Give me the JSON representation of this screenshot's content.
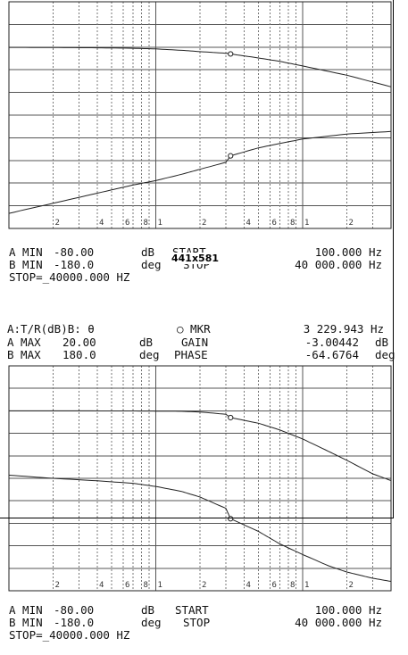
{
  "overlay_label": "441x581",
  "plots": [
    {
      "header": {
        "mode": "",
        "marker": "",
        "marker_freq": "",
        "a_max_label": "",
        "a_max_value": "",
        "a_max_unit": "",
        "gain_label": "",
        "gain_value": "",
        "gain_unit": "",
        "b_max_label": "",
        "b_max_value": "",
        "b_max_unit": "",
        "phase_label": "",
        "phase_value": "",
        "phase_unit": ""
      },
      "footer": {
        "a_min_label": "A MIN",
        "a_min_value": "-80.00",
        "a_min_unit": "dB",
        "start_label": "START",
        "start_value": "100.000 Hz",
        "b_min_label": "B MIN",
        "b_min_value": "-180.0",
        "b_min_unit": "deg",
        "stop_label": "STOP",
        "stop_value": "40 000.000 Hz",
        "stop_line": "STOP=_40000.000 HZ"
      },
      "x_tick_labels": [
        "2",
        "4",
        "6",
        "8",
        "1",
        "2",
        "4",
        "6",
        "8",
        "1",
        "2"
      ]
    },
    {
      "header": {
        "mode": "A:T/R(dB)B: θ",
        "marker": "○ MKR",
        "marker_freq": "3 229.943 Hz",
        "a_max_label": "A MAX",
        "a_max_value": "20.00",
        "a_max_unit": "dB",
        "gain_label": "GAIN",
        "gain_value": "-3.00442",
        "gain_unit": "dB",
        "b_max_label": "B MAX",
        "b_max_value": "180.0",
        "b_max_unit": "deg",
        "phase_label": "PHASE",
        "phase_value": "-64.6764",
        "phase_unit": "deg"
      },
      "footer": {
        "a_min_label": "A MIN",
        "a_min_value": "-80.00",
        "a_min_unit": "dB",
        "start_label": "START",
        "start_value": "100.000 Hz",
        "b_min_label": "B MIN",
        "b_min_value": "-180.0",
        "b_min_unit": "deg",
        "stop_label": "STOP",
        "stop_value": "40 000.000 Hz",
        "stop_line": "STOP=_40000.000 HZ"
      },
      "x_tick_labels": [
        "2",
        "4",
        "6",
        "8",
        "1",
        "2",
        "4",
        "6",
        "8",
        "1",
        "2"
      ]
    }
  ],
  "chart_data": [
    {
      "type": "line",
      "title": "",
      "xscale": "log",
      "xlim": [
        100,
        40000
      ],
      "ylim_a": [
        -80,
        20
      ],
      "ylim_b": [
        -180,
        180
      ],
      "grid": true,
      "series": [
        {
          "axis": "A",
          "unit": "dB",
          "x": [
            100,
            200,
            400,
            700,
            1000,
            1500,
            2000,
            3000,
            3230,
            5000,
            7000,
            10000,
            20000,
            40000
          ],
          "y": [
            -0.1,
            -0.2,
            -0.3,
            -0.5,
            -0.8,
            -1.4,
            -2.0,
            -2.7,
            -3.0,
            -4.8,
            -6.3,
            -8.3,
            -12.4,
            -17.5
          ]
        },
        {
          "axis": "B",
          "unit": "deg",
          "x": [
            100,
            200,
            400,
            700,
            1000,
            1500,
            2000,
            3000,
            3230,
            5000,
            7000,
            10000,
            20000,
            40000
          ],
          "y": [
            -156,
            -140,
            -124,
            -111,
            -104,
            -94,
            -86,
            -75,
            -64.7,
            -52,
            -45,
            -38,
            -30,
            -26
          ]
        }
      ],
      "marker": {
        "x": 3229.943,
        "a": -3.00442,
        "b": -64.6764
      }
    },
    {
      "type": "line",
      "title": "",
      "xscale": "log",
      "xlim": [
        100,
        40000
      ],
      "ylim_a": [
        -80,
        20
      ],
      "ylim_b": [
        -180,
        180
      ],
      "grid": true,
      "series": [
        {
          "axis": "A",
          "unit": "dB",
          "x": [
            100,
            200,
            400,
            700,
            1000,
            1500,
            2000,
            3000,
            3230,
            5000,
            7000,
            10000,
            15000,
            20000,
            30000,
            40000
          ],
          "y": [
            0,
            0,
            -0.02,
            -0.05,
            -0.1,
            -0.2,
            -0.5,
            -1.5,
            -3.0,
            -5.5,
            -8.5,
            -12.5,
            -18,
            -22,
            -28,
            -31
          ]
        },
        {
          "axis": "B",
          "unit": "deg",
          "x": [
            100,
            200,
            400,
            700,
            1000,
            1500,
            2000,
            3000,
            3230,
            5000,
            7000,
            10000,
            15000,
            20000,
            30000,
            40000
          ],
          "y": [
            5,
            0,
            -4,
            -8,
            -13,
            -21,
            -30,
            -48,
            -64.7,
            -85,
            -105,
            -122,
            -140,
            -150,
            -160,
            -165
          ]
        }
      ],
      "marker": {
        "x": 3229.943,
        "a": -3.00442,
        "b": -64.6764
      }
    }
  ]
}
